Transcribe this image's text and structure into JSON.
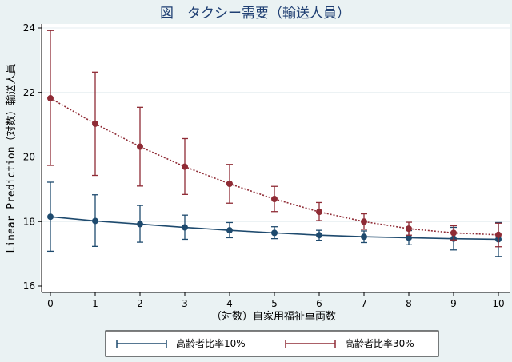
{
  "chart_data": {
    "type": "line",
    "title": "図　タクシー需要（輸送人員）",
    "xlabel": "（対数）自家用福祉車両数",
    "ylabel": "Linear Prediction（対数）輸送人員",
    "x": [
      0,
      1,
      2,
      3,
      4,
      5,
      6,
      7,
      8,
      9,
      10
    ],
    "xlim": [
      0,
      10
    ],
    "ylim": [
      16,
      24
    ],
    "yticks": [
      16,
      18,
      20,
      22,
      24
    ],
    "grid": "horizontal",
    "legend_position": "bottom",
    "series": [
      {
        "name": "高齢者比率10%",
        "color": "#1e4a6e",
        "line_style": "solid",
        "values": [
          18.15,
          18.02,
          17.92,
          17.82,
          17.73,
          17.65,
          17.58,
          17.53,
          17.5,
          17.47,
          17.45
        ],
        "ci_low": [
          17.08,
          17.23,
          17.36,
          17.45,
          17.5,
          17.47,
          17.42,
          17.35,
          17.28,
          17.12,
          16.92
        ],
        "ci_high": [
          19.22,
          18.83,
          18.5,
          18.2,
          17.97,
          17.84,
          17.73,
          17.71,
          17.72,
          17.82,
          17.97
        ]
      },
      {
        "name": "高齢者比率30%",
        "color": "#8f2b35",
        "line_style": "dotted",
        "values": [
          21.82,
          21.03,
          20.32,
          19.7,
          19.17,
          18.7,
          18.3,
          18.0,
          17.78,
          17.65,
          17.59
        ],
        "ci_low": [
          19.74,
          19.43,
          19.1,
          18.84,
          18.57,
          18.31,
          18.03,
          17.76,
          17.58,
          17.43,
          17.22
        ],
        "ci_high": [
          23.92,
          22.63,
          21.54,
          20.57,
          19.77,
          19.09,
          18.59,
          18.24,
          17.98,
          17.87,
          17.95
        ]
      }
    ]
  }
}
